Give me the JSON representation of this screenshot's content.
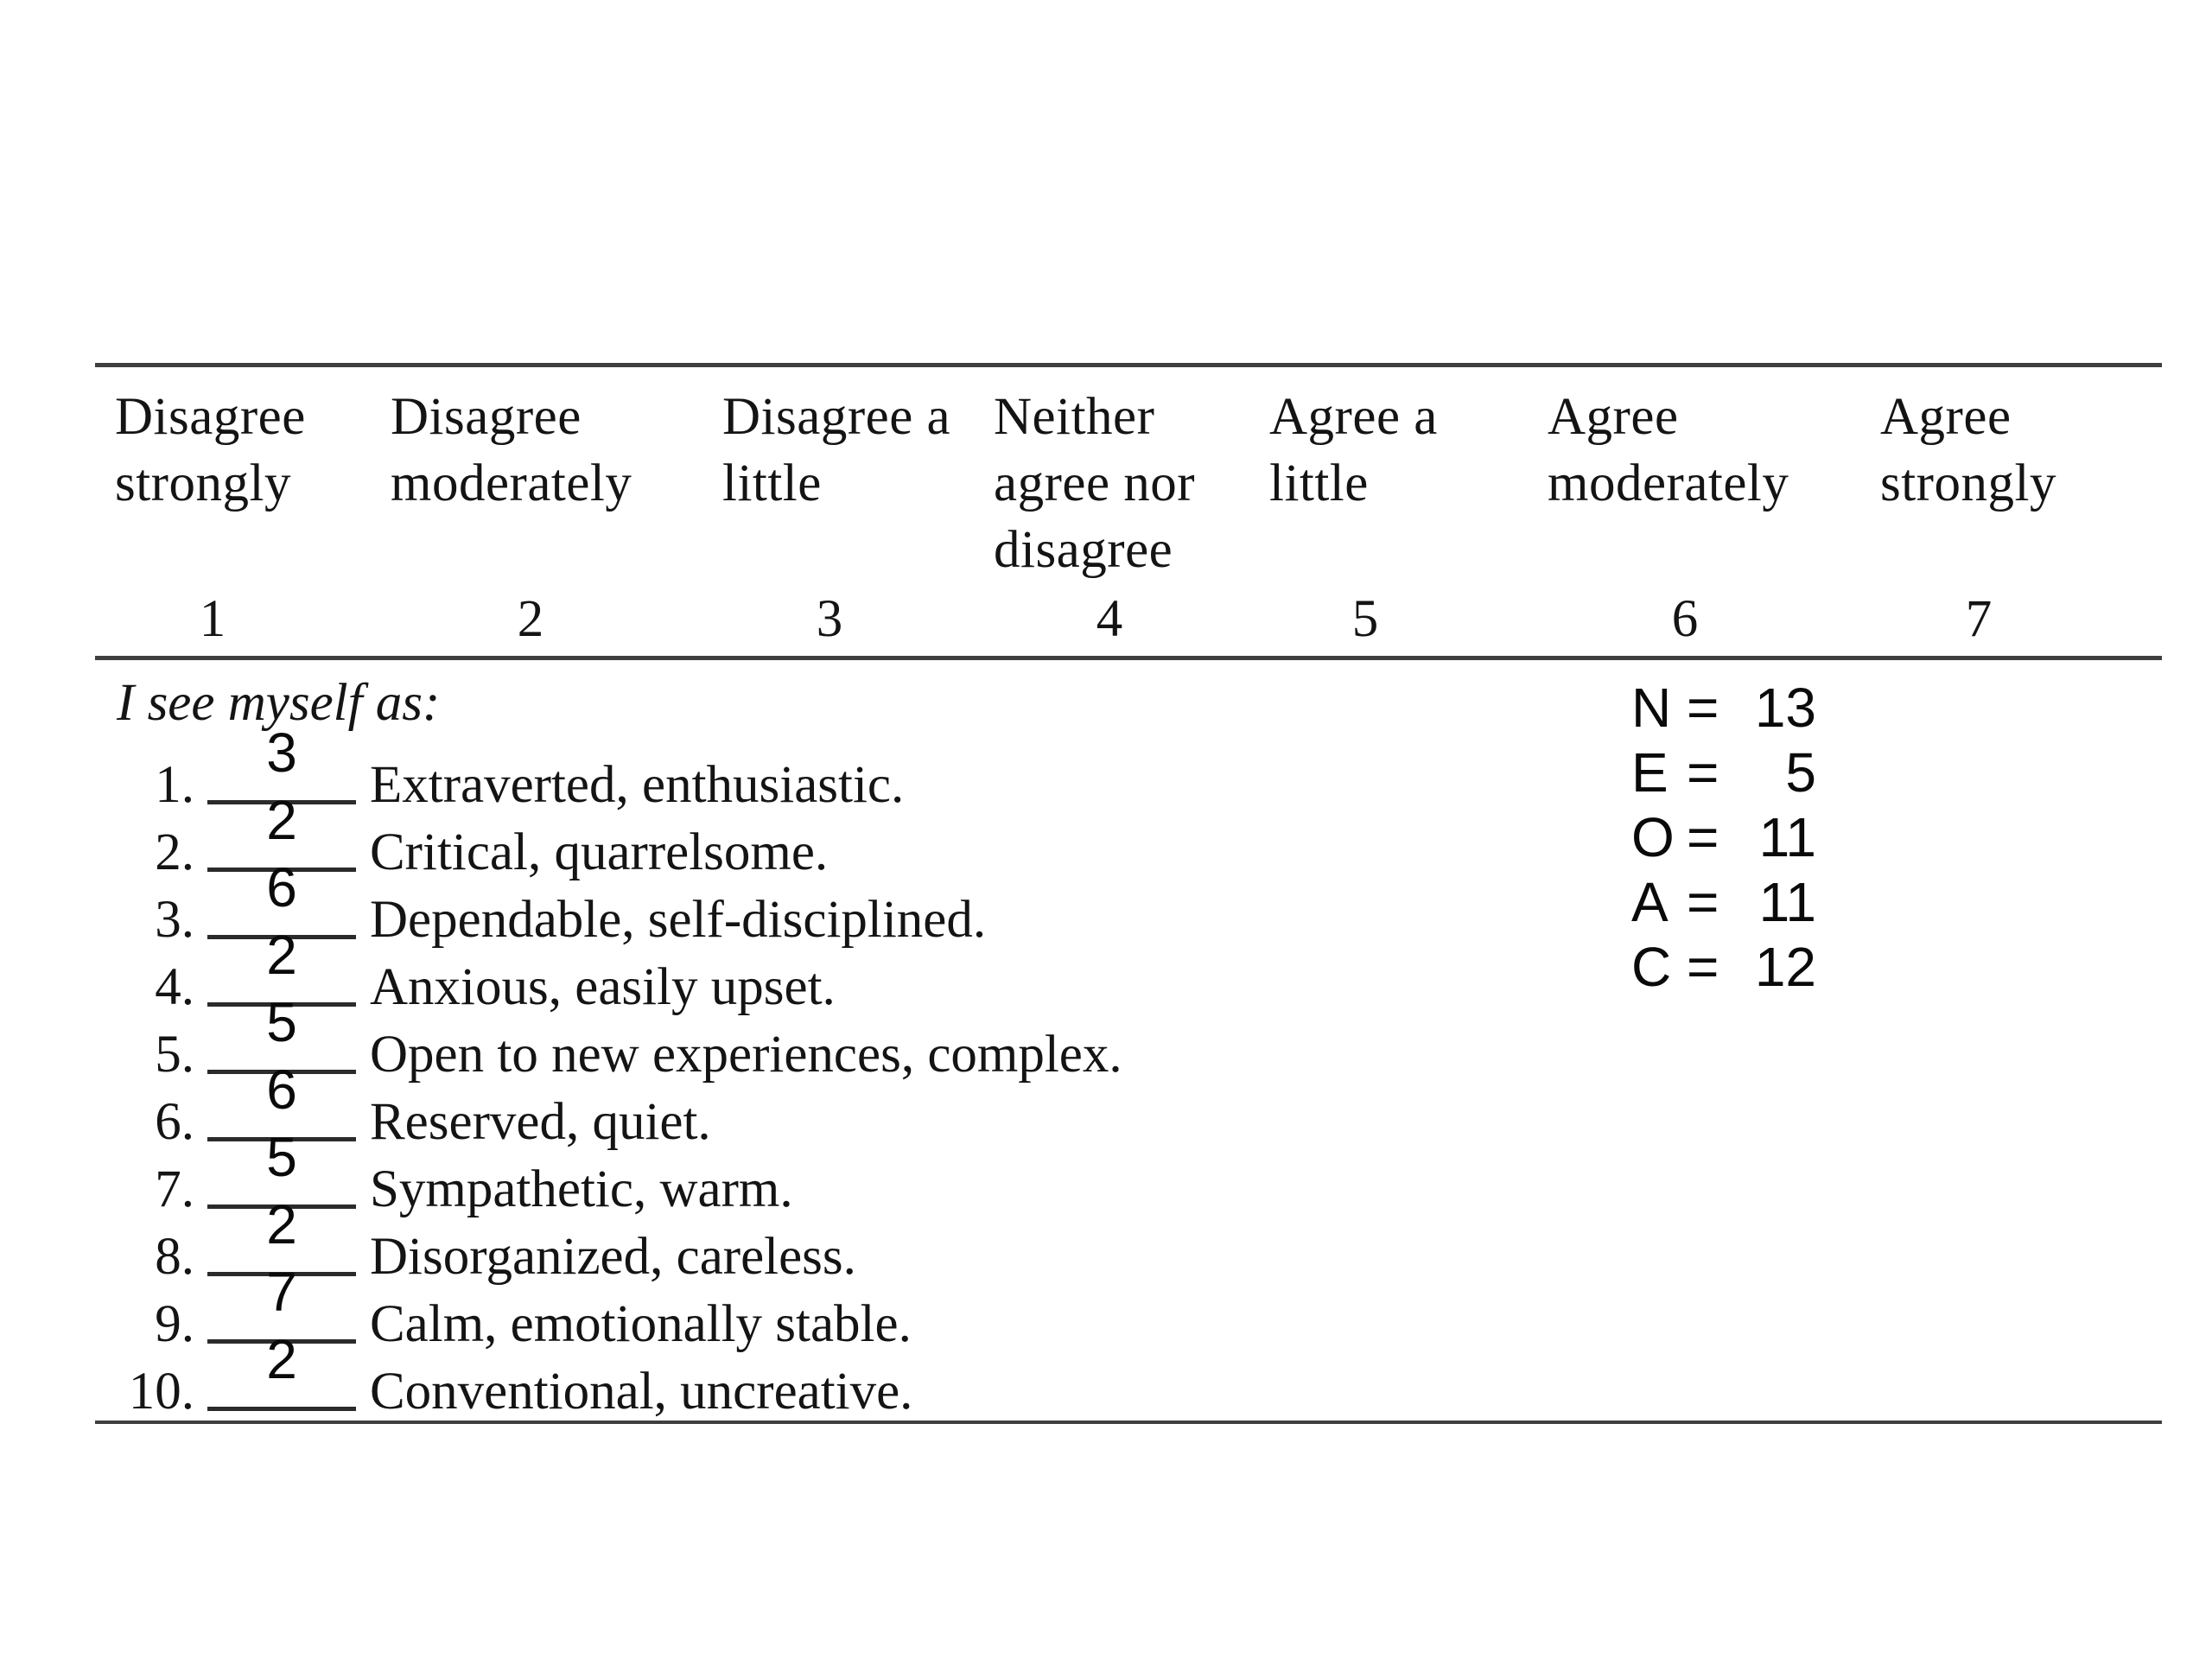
{
  "colors": {
    "background": "#ffffff",
    "text": "#141414",
    "rule": "#3f3f3f",
    "typed_digits": "#0a0a0a"
  },
  "rating_scale": {
    "options": [
      {
        "label": "Disagree strongly",
        "value": "1"
      },
      {
        "label": "Disagree moderately",
        "value": "2"
      },
      {
        "label": "Disagree a little",
        "value": "3"
      },
      {
        "label": "Neither agree nor disagree",
        "value": "4"
      },
      {
        "label": "Agree a little",
        "value": "5"
      },
      {
        "label": "Agree moderately",
        "value": "6"
      },
      {
        "label": "Agree strongly",
        "value": "7"
      }
    ]
  },
  "prompt": "I see myself as:",
  "items": [
    {
      "number": "1.",
      "answer": "3",
      "trait": "Extraverted, enthusiastic."
    },
    {
      "number": "2.",
      "answer": "2",
      "trait": "Critical, quarrelsome."
    },
    {
      "number": "3.",
      "answer": "6",
      "trait": "Dependable, self-disciplined."
    },
    {
      "number": "4.",
      "answer": "2",
      "trait": "Anxious, easily upset."
    },
    {
      "number": "5.",
      "answer": "5",
      "trait": "Open to new experiences, complex."
    },
    {
      "number": "6.",
      "answer": "6",
      "trait": "Reserved, quiet."
    },
    {
      "number": "7.",
      "answer": "5",
      "trait": "Sympathetic, warm."
    },
    {
      "number": "8.",
      "answer": "2",
      "trait": "Disorganized, careless."
    },
    {
      "number": "9.",
      "answer": "7",
      "trait": "Calm, emotionally stable."
    },
    {
      "number": "10.",
      "answer": "2",
      "trait": "Conventional, uncreative."
    }
  ],
  "scores": [
    {
      "label": "N",
      "eq": "=",
      "value": "13"
    },
    {
      "label": "E",
      "eq": "=",
      "value": "5"
    },
    {
      "label": "O",
      "eq": "=",
      "value": "11"
    },
    {
      "label": "A",
      "eq": "=",
      "value": "11"
    },
    {
      "label": "C",
      "eq": "=",
      "value": "12"
    }
  ]
}
